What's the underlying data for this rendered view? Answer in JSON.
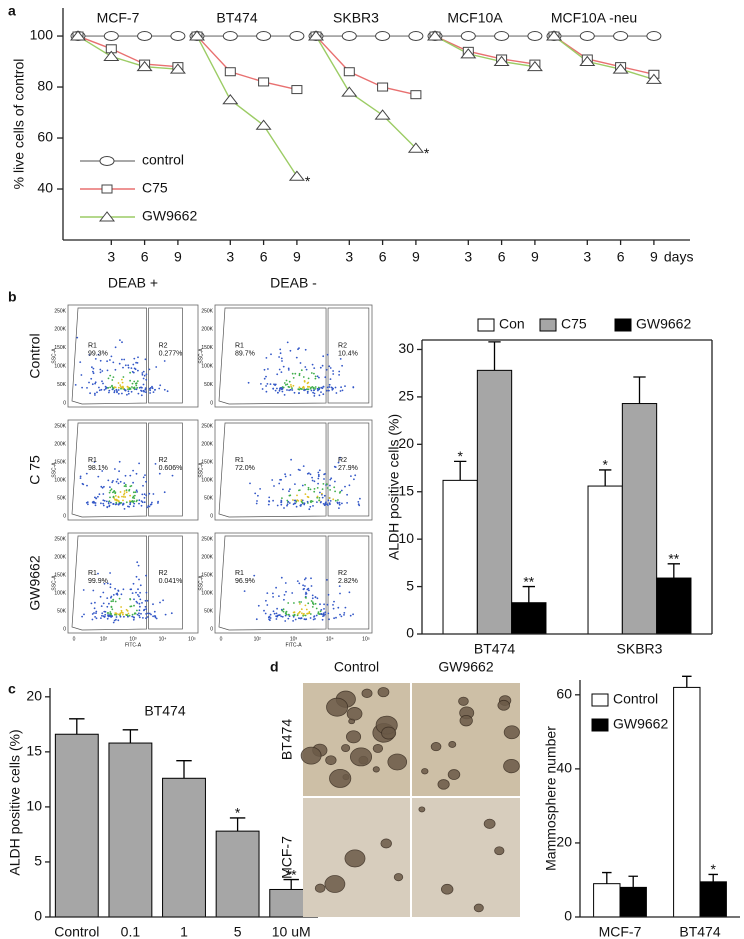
{
  "chart_data": [
    {
      "type": "line",
      "panel_label": "a",
      "ylabel": "% live cells of control",
      "ylim": [
        20,
        111
      ],
      "yticks": [
        40,
        60,
        80,
        100
      ],
      "x_unit": "days",
      "legend": [
        {
          "name": "control",
          "color": "#8c8c8c",
          "marker": "circle"
        },
        {
          "name": "C75",
          "color": "#e87070",
          "marker": "square"
        },
        {
          "name": "GW9662",
          "color": "#9ccc65",
          "marker": "triangle"
        }
      ],
      "panels": [
        {
          "title": "MCF-7",
          "x": [
            0,
            3,
            6,
            9
          ],
          "xticks": [
            3,
            6,
            9
          ],
          "series": [
            {
              "values": [
                100,
                100,
                100,
                100
              ]
            },
            {
              "values": [
                100,
                95,
                89,
                88
              ]
            },
            {
              "values": [
                100,
                92,
                88,
                87
              ]
            }
          ]
        },
        {
          "title": "BT474",
          "x": [
            0,
            3,
            6,
            9
          ],
          "xticks": [
            3,
            6,
            9
          ],
          "series": [
            {
              "values": [
                100,
                100,
                100,
                100
              ]
            },
            {
              "values": [
                100,
                86,
                82,
                79
              ]
            },
            {
              "values": [
                100,
                75,
                65,
                45
              ],
              "annotation": "*"
            }
          ]
        },
        {
          "title": "SKBR3",
          "x": [
            0,
            3,
            6,
            9
          ],
          "xticks": [
            3,
            6,
            9
          ],
          "series": [
            {
              "values": [
                100,
                100,
                100,
                100
              ]
            },
            {
              "values": [
                100,
                86,
                80,
                77
              ]
            },
            {
              "values": [
                100,
                78,
                69,
                56
              ],
              "annotation": "*"
            }
          ]
        },
        {
          "title": "MCF10A",
          "x": [
            0,
            3,
            6,
            9
          ],
          "xticks": [
            3,
            6,
            9
          ],
          "series": [
            {
              "values": [
                100,
                100,
                100,
                100
              ]
            },
            {
              "values": [
                100,
                94,
                91,
                89
              ]
            },
            {
              "values": [
                100,
                93,
                90,
                88
              ]
            }
          ]
        },
        {
          "title": "MCF10A -neu",
          "x": [
            0,
            3,
            6,
            9
          ],
          "xticks": [
            3,
            6,
            9
          ],
          "series": [
            {
              "values": [
                100,
                100,
                100,
                100
              ]
            },
            {
              "values": [
                100,
                91,
                88,
                85
              ]
            },
            {
              "values": [
                100,
                90,
                87,
                83
              ]
            }
          ]
        }
      ]
    },
    {
      "type": "flow",
      "panel_label": "b",
      "columns": [
        "DEAB +",
        "DEAB -"
      ],
      "rows": [
        "Control",
        "C 75",
        "GW9662"
      ],
      "gate_names": [
        "R1",
        "R2"
      ],
      "gate_values": [
        [
          [
            "99.3%",
            "0.277%"
          ],
          [
            "89.7%",
            "10.4%"
          ]
        ],
        [
          [
            "98.1%",
            "0.606%"
          ],
          [
            "72.0%",
            "27.9%"
          ]
        ],
        [
          [
            "99.9%",
            "0.041%"
          ],
          [
            "96.9%",
            "2.82%"
          ]
        ]
      ],
      "y_tick_labels": [
        "250K",
        "200K",
        "150K",
        "100K",
        "50K",
        "0"
      ],
      "x_tick_labels": [
        "0",
        "10²",
        "10³",
        "10⁴",
        "10⁵"
      ],
      "ylabel": "SSC-A",
      "xlabel": "FITC-A"
    },
    {
      "type": "bar",
      "ylabel": "ALDH positive cells (%)",
      "categories": [
        "BT474",
        "SKBR3"
      ],
      "ylim": [
        0,
        31
      ],
      "yticks": [
        0,
        5,
        10,
        15,
        20,
        25,
        30
      ],
      "legend_position": "top",
      "series": [
        {
          "name": "Con",
          "color": "#ffffff",
          "values": [
            16.2,
            15.6
          ],
          "errors": [
            2.0,
            1.7
          ],
          "annotations": [
            "*",
            "*"
          ]
        },
        {
          "name": "C75",
          "color": "#a6a6a6",
          "values": [
            27.8,
            24.3
          ],
          "errors": [
            3.0,
            2.8
          ]
        },
        {
          "name": "GW9662",
          "color": "#000000",
          "values": [
            3.3,
            5.9
          ],
          "errors": [
            1.7,
            1.5
          ],
          "annotations": [
            "**",
            "**"
          ]
        }
      ]
    },
    {
      "type": "bar",
      "panel_label": "c",
      "title": "BT474",
      "ylabel": "ALDH positive  cells (%)",
      "categories": [
        "Control",
        "0.1",
        "1",
        "5",
        "10 uM"
      ],
      "ylim": [
        0,
        20.8
      ],
      "yticks": [
        0,
        5,
        10,
        15,
        20
      ],
      "series": [
        {
          "color": "#a6a6a6",
          "values": [
            16.6,
            15.8,
            12.6,
            7.8,
            2.5
          ],
          "errors": [
            1.4,
            1.2,
            1.6,
            1.2,
            0.9
          ],
          "annotations": [
            null,
            null,
            null,
            "*",
            "**"
          ]
        }
      ]
    },
    {
      "type": "image-grid",
      "panel_label": "d",
      "columns": [
        "Control",
        "GW9662"
      ],
      "rows": [
        "BT474",
        "MCF-7"
      ]
    },
    {
      "type": "bar",
      "ylabel": "Mammosphere number",
      "categories": [
        "MCF-7",
        "BT474"
      ],
      "ylim": [
        0,
        64
      ],
      "yticks": [
        0,
        20,
        40,
        60
      ],
      "legend_position": "upper left",
      "series": [
        {
          "name": "Control",
          "color": "#ffffff",
          "values": [
            9,
            62
          ],
          "errors": [
            3,
            3
          ]
        },
        {
          "name": "GW9662",
          "color": "#000000",
          "values": [
            8,
            9.5
          ],
          "errors": [
            3,
            2
          ],
          "annotations": [
            null,
            "*"
          ]
        }
      ]
    }
  ]
}
